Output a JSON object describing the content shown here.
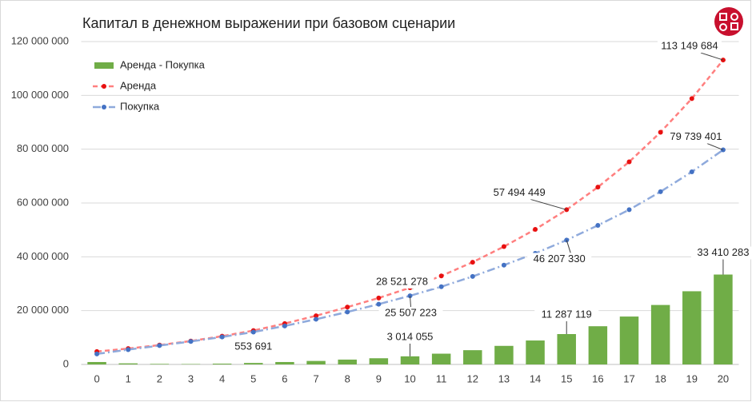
{
  "chart_data": {
    "type": "bar",
    "title": "Капитал в денежном выражении при базовом сценарии",
    "categories": [
      "0",
      "1",
      "2",
      "3",
      "4",
      "5",
      "6",
      "7",
      "8",
      "9",
      "10",
      "11",
      "12",
      "13",
      "14",
      "15",
      "16",
      "17",
      "18",
      "19",
      "20"
    ],
    "ylim": [
      0,
      120000000
    ],
    "yticks": [
      0,
      {
        "value": 20000000,
        "label": "20 000 000"
      },
      {
        "value": 40000000,
        "label": "40 000 000"
      },
      {
        "value": 60000000,
        "label": "60 000 000"
      },
      {
        "value": 80000000,
        "label": "80 000 000"
      },
      {
        "value": 100000000,
        "label": "100 000 000"
      },
      {
        "value": 120000000,
        "label": "120 000 000"
      }
    ],
    "legend": "top-left",
    "series": [
      {
        "name": "Аренда - Покупка",
        "type": "bar",
        "color": "#70ad47",
        "values": [
          900000,
          400000,
          200000,
          150000,
          300000,
          553691,
          900000,
          1300000,
          1800000,
          2300000,
          3014055,
          4000000,
          5300000,
          6900000,
          8900000,
          11287119,
          14200000,
          17800000,
          22100000,
          27200000,
          33410283
        ],
        "value_labels": [
          null,
          null,
          null,
          null,
          null,
          "553 691",
          null,
          null,
          null,
          null,
          "3 014 055",
          null,
          null,
          null,
          null,
          "11 287 119",
          null,
          null,
          null,
          null,
          "33 410 283"
        ]
      },
      {
        "name": "Аренда",
        "type": "line",
        "color": "#ff7f7f",
        "marker_color": "#e81010",
        "dash": "6 4",
        "values": [
          4800000,
          5900000,
          7200000,
          8700000,
          10500000,
          12600000,
          15200000,
          18100000,
          21300000,
          24700000,
          28521278,
          32900000,
          38000000,
          43800000,
          50200000,
          57494449,
          65900000,
          75300000,
          86300000,
          98800000,
          113149684
        ],
        "value_labels": [
          null,
          null,
          null,
          null,
          null,
          null,
          null,
          null,
          null,
          null,
          "28 521 278",
          null,
          null,
          null,
          null,
          "57 494 449",
          null,
          null,
          null,
          null,
          "113 149 684"
        ]
      },
      {
        "name": "Покупка",
        "type": "line",
        "color": "#8faadc",
        "marker_color": "#4472c4",
        "dash": "10 4 2 4",
        "values": [
          3900000,
          5500000,
          7000000,
          8550000,
          10200000,
          12046309,
          14300000,
          16800000,
          19500000,
          22400000,
          25507223,
          28900000,
          32700000,
          36900000,
          41300000,
          46207330,
          51700000,
          57500000,
          64200000,
          71600000,
          79739401
        ],
        "value_labels": [
          null,
          null,
          null,
          null,
          null,
          null,
          null,
          null,
          null,
          null,
          "25 507 223",
          null,
          null,
          null,
          null,
          "46 207 330",
          null,
          null,
          null,
          null,
          "79 739 401"
        ]
      }
    ]
  }
}
